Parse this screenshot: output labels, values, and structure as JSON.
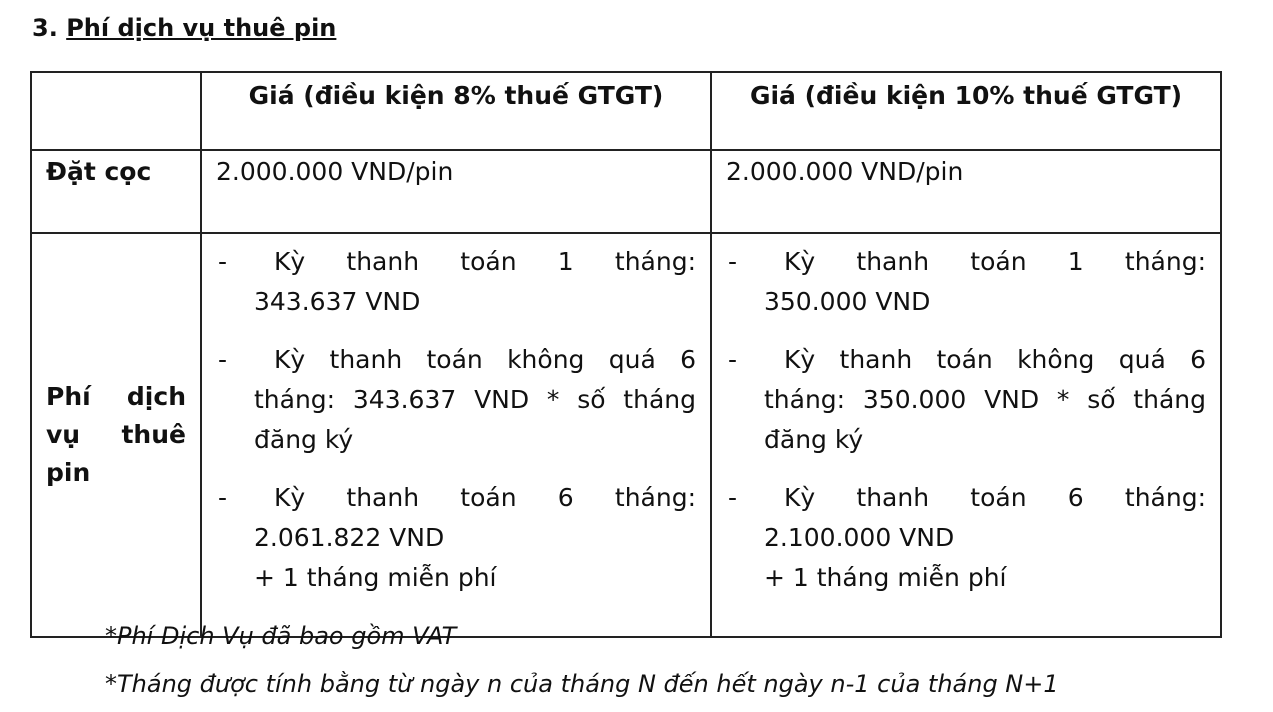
{
  "section": {
    "number": "3.",
    "title": "Phí dịch vụ thuê pin"
  },
  "table": {
    "headers": [
      "",
      "Giá (điều kiện 8% thuế GTGT)",
      "Giá (điều kiện 10% thuế GTGT)"
    ],
    "deposit": {
      "label": "Đặt cọc",
      "col8": "2.000.000 VND/pin",
      "col10": "2.000.000 VND/pin"
    },
    "rental": {
      "label_lines": [
        "Phí dịch",
        "vụ thuê",
        "pin"
      ],
      "col8": [
        {
          "dash": "-",
          "first": "Kỳ thanh toán 1 tháng:",
          "rest": "343.637 VND",
          "extra": ""
        },
        {
          "dash": "-",
          "first": "Kỳ thanh toán không quá 6",
          "rest": "tháng: 343.637 VND * số tháng đăng ký",
          "extra": ""
        },
        {
          "dash": "-",
          "first": "Kỳ thanh toán 6 tháng:",
          "rest": "2.061.822 VND",
          "extra": "+ 1 tháng miễn phí"
        }
      ],
      "col10": [
        {
          "dash": "-",
          "first": "Kỳ thanh toán 1 tháng:",
          "rest": "350.000 VND",
          "extra": ""
        },
        {
          "dash": "-",
          "first": "Kỳ thanh toán không quá 6",
          "rest": "tháng: 350.000 VND * số tháng đăng ký",
          "extra": ""
        },
        {
          "dash": "-",
          "first": "Kỳ thanh toán 6 tháng:",
          "rest": "2.100.000 VND",
          "extra": "+ 1 tháng miễn phí"
        }
      ]
    }
  },
  "notes": [
    "*Phí Dịch Vụ đã bao gồm VAT",
    "*Tháng được tính bằng từ ngày n của tháng N đến hết ngày n-1 của tháng N+1"
  ]
}
